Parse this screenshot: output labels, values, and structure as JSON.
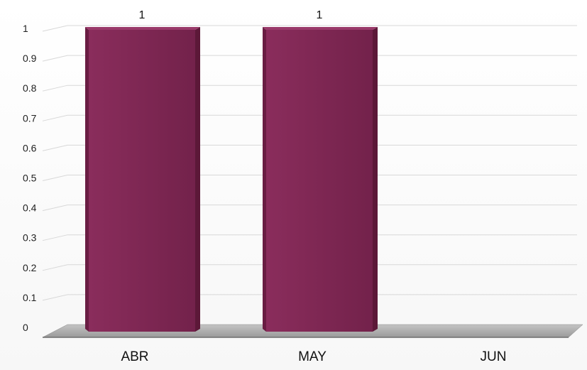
{
  "chart_data": {
    "type": "bar",
    "categories": [
      "ABR",
      "MAY",
      "JUN"
    ],
    "values": [
      1,
      1,
      0
    ],
    "data_labels": [
      "1",
      "1",
      ""
    ],
    "ylim": [
      0,
      1
    ],
    "yticks": [
      "0",
      "0.1",
      "0.2",
      "0.3",
      "0.4",
      "0.5",
      "0.6",
      "0.7",
      "0.8",
      "0.9",
      "1"
    ],
    "title": "",
    "xlabel": "",
    "ylabel": "",
    "grid": true,
    "bar_color": "#7e2753",
    "bar_side_color": "#5c1838",
    "floor_color": "#a8a8a8"
  }
}
